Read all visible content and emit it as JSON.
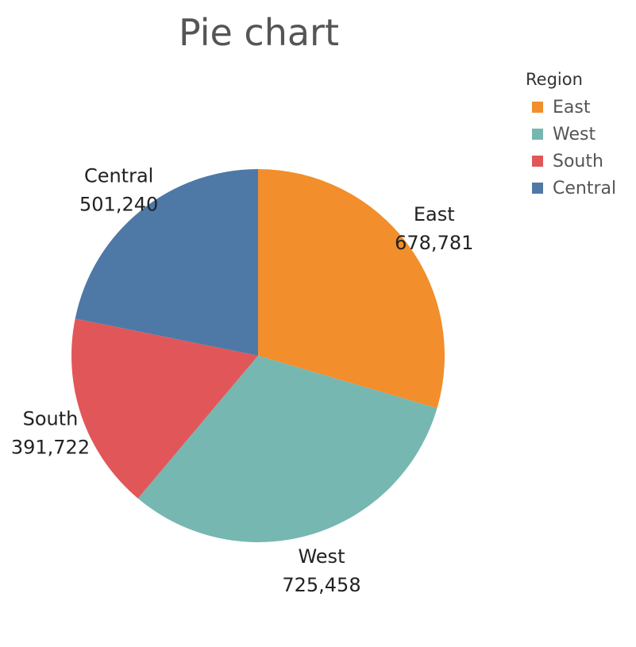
{
  "chart_data": {
    "type": "pie",
    "title": "Pie chart",
    "legend": {
      "title": "Region",
      "placement": "top-right",
      "entries": [
        "East",
        "West",
        "South",
        "Central"
      ]
    },
    "slices": [
      {
        "label": "East",
        "value": 678781,
        "display": "678,781",
        "color": "#F28E2B"
      },
      {
        "label": "West",
        "value": 725458,
        "display": "725,458",
        "color": "#76B7B2"
      },
      {
        "label": "South",
        "value": 391722,
        "display": "391,722",
        "color": "#E15759"
      },
      {
        "label": "Central",
        "value": 501240,
        "display": "501,240",
        "color": "#4E79A7"
      }
    ]
  }
}
